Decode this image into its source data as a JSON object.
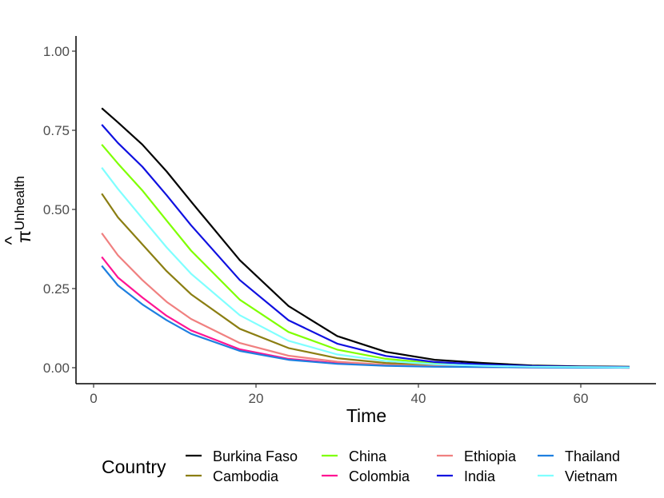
{
  "chart_data": {
    "type": "line",
    "xlabel": "Time",
    "ylabel": {
      "symbol": "π",
      "hat": "^",
      "subscript": "Unhealth"
    },
    "xlim": [
      0,
      66
    ],
    "ylim": [
      0,
      1
    ],
    "xticks": [
      0,
      20,
      40,
      60
    ],
    "yticks": [
      0,
      0.25,
      0.5,
      0.75,
      1
    ],
    "ytick_labels": [
      "0.00",
      "0.25",
      "0.50",
      "0.75",
      "1.00"
    ],
    "xtick_labels": [
      "0",
      "20",
      "40",
      "60"
    ],
    "grid": false,
    "legend": {
      "title": "Country",
      "position": "bottom"
    },
    "x": [
      1,
      3,
      6,
      9,
      12,
      18,
      24,
      30,
      36,
      42,
      48,
      54,
      60,
      66
    ],
    "series": [
      {
        "name": "Burkina Faso",
        "color": "#000000",
        "values": [
          0.82,
          0.775,
          0.705,
          0.62,
          0.525,
          0.34,
          0.195,
          0.1,
          0.05,
          0.025,
          0.015,
          0.007,
          0.004,
          0.003
        ]
      },
      {
        "name": "Cambodia",
        "color": "#8B7E12",
        "values": [
          0.55,
          0.475,
          0.39,
          0.305,
          0.232,
          0.123,
          0.062,
          0.03,
          0.015,
          0.008,
          0.005,
          0.003,
          0.002,
          0.001
        ]
      },
      {
        "name": "China",
        "color": "#7FFF00",
        "values": [
          0.705,
          0.645,
          0.56,
          0.465,
          0.37,
          0.215,
          0.113,
          0.057,
          0.028,
          0.014,
          0.008,
          0.004,
          0.002,
          0.001
        ]
      },
      {
        "name": "Colombia",
        "color": "#FF1493",
        "values": [
          0.35,
          0.285,
          0.222,
          0.164,
          0.118,
          0.058,
          0.028,
          0.014,
          0.007,
          0.004,
          0.002,
          0.001,
          0.001,
          0.0
        ]
      },
      {
        "name": "Ethiopia",
        "color": "#F08080",
        "values": [
          0.425,
          0.355,
          0.277,
          0.208,
          0.154,
          0.078,
          0.038,
          0.019,
          0.009,
          0.005,
          0.003,
          0.002,
          0.001,
          0.0
        ]
      },
      {
        "name": "India",
        "color": "#1010E0",
        "values": [
          0.768,
          0.71,
          0.635,
          0.545,
          0.45,
          0.277,
          0.15,
          0.076,
          0.037,
          0.018,
          0.01,
          0.005,
          0.003,
          0.002
        ]
      },
      {
        "name": "Thailand",
        "color": "#1E7FE0",
        "values": [
          0.322,
          0.26,
          0.2,
          0.15,
          0.107,
          0.053,
          0.025,
          0.012,
          0.006,
          0.003,
          0.002,
          0.001,
          0.0,
          0.0
        ]
      },
      {
        "name": "Vietnam",
        "color": "#7FFFFF",
        "values": [
          0.632,
          0.565,
          0.472,
          0.38,
          0.297,
          0.166,
          0.085,
          0.042,
          0.021,
          0.011,
          0.006,
          0.003,
          0.002,
          0.001
        ]
      }
    ]
  }
}
